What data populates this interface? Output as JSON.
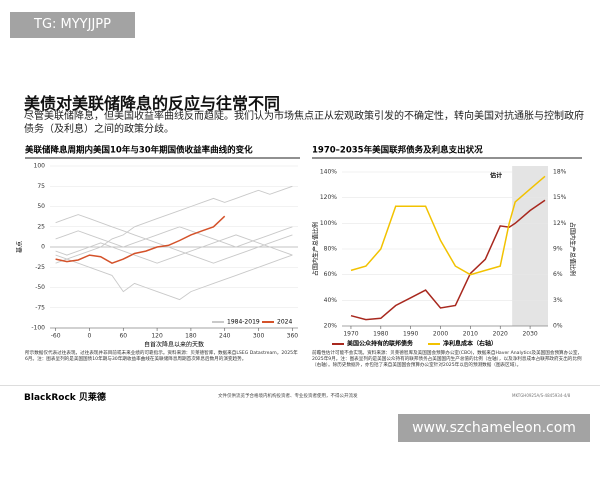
{
  "watermark_top": "TG: MYYJJPP",
  "header": {
    "title": "美债对美联储降息的反应与往常不同",
    "subtitle": "尽管美联储降息，但美国收益率曲线反而趋陡。我们认为市场焦点正从宏观政策引发的不确定性，转向美国对抗通胀与控制政府债务（及利息）之间的政策分歧。"
  },
  "chart_data": [
    {
      "type": "line",
      "title": "美联储降息周期内美国10年与30年期国债收益率曲线的变化",
      "ylabel": "基点",
      "xlabel": "自首次降息以来的天数",
      "x": [
        -60,
        -40,
        -20,
        0,
        20,
        40,
        60,
        80,
        100,
        120,
        140,
        160,
        180,
        200,
        220,
        240,
        260,
        280,
        300,
        320,
        340,
        360
      ],
      "series": [
        {
          "name": "1984-2019",
          "color": "#c9c9c9",
          "values": [
            -20,
            -15,
            -10,
            -5,
            0,
            10,
            15,
            25,
            30,
            35,
            40,
            45,
            50,
            55,
            60,
            55,
            60,
            65,
            70,
            65,
            70,
            75
          ]
        },
        {
          "color": "#c9c9c9",
          "values": [
            -10,
            -15,
            -20,
            -25,
            -30,
            -35,
            -55,
            -45,
            -50,
            -55,
            -60,
            -65,
            -55,
            -50,
            -45,
            -40,
            -35,
            -30,
            -25,
            -20,
            -15,
            -10
          ]
        },
        {
          "color": "#c9c9c9",
          "values": [
            10,
            15,
            20,
            15,
            10,
            5,
            0,
            5,
            10,
            15,
            20,
            25,
            20,
            15,
            10,
            5,
            0,
            5,
            10,
            15,
            20,
            25
          ]
        },
        {
          "color": "#c9c9c9",
          "values": [
            30,
            35,
            40,
            35,
            30,
            25,
            20,
            15,
            10,
            5,
            0,
            -5,
            -10,
            -15,
            -20,
            -15,
            -10,
            -5,
            0,
            5,
            10,
            15
          ]
        },
        {
          "color": "#c9c9c9",
          "values": [
            -5,
            -10,
            -5,
            0,
            5,
            0,
            -5,
            -10,
            -15,
            -20,
            -15,
            -10,
            -5,
            0,
            5,
            10,
            15,
            10,
            5,
            0,
            -5,
            -10
          ]
        },
        {
          "name": "2024",
          "color": "#d4522a",
          "values": [
            -15,
            -18,
            -16,
            -10,
            -12,
            -20,
            -15,
            -8,
            -5,
            0,
            2,
            8,
            15,
            20,
            25,
            38,
            null,
            null,
            null,
            null,
            null,
            null
          ]
        }
      ],
      "xlim": [
        -70,
        370
      ],
      "xticks": [
        -60,
        0,
        60,
        120,
        180,
        240,
        300,
        360
      ],
      "ylim": [
        -100,
        100
      ],
      "yticks": [
        -100,
        -75,
        -50,
        -25,
        0,
        25,
        50,
        75,
        100
      ],
      "legend": "bottom-right",
      "footnote": "所示数据仅代表过往表现，过往表现并非目前或未来业绩的可靠指示。资料来源：贝莱德智库，数据来自LSEG Datastream，2025年6月。注：图表呈列的是美国国债10年期与30年期收益率曲线在美联储降息周期首次降息后数月的演变趋势。"
    },
    {
      "type": "line",
      "title": "1970–2035年美国联邦债务及利息支出状况",
      "ylabel": "占国内生产总值比例",
      "y2label": "占国内生产总值比例",
      "annotation": "估计",
      "shade_x": [
        2024,
        2036
      ],
      "x": [
        1970,
        1975,
        1980,
        1985,
        1990,
        1995,
        2000,
        2005,
        2010,
        2015,
        2020,
        2023,
        2025,
        2030,
        2035
      ],
      "series": [
        {
          "name": "美国公众持有的联邦债务",
          "color": "#a8281e",
          "values": [
            28,
            25,
            26,
            36,
            42,
            48,
            34,
            36,
            61,
            72,
            98,
            97,
            100,
            110,
            118
          ]
        },
        {
          "name": "净利息成本（右轴）",
          "color": "#f2c200",
          "axis": "y2",
          "values": [
            6.5,
            7,
            9,
            14,
            14,
            14,
            10,
            7,
            6,
            6.5,
            7,
            12,
            14.5,
            16,
            17.5
          ]
        }
      ],
      "xlim": [
        1967,
        2036
      ],
      "xticks": [
        1970,
        1980,
        1990,
        2000,
        2010,
        2020,
        2030
      ],
      "ylim": [
        20,
        140
      ],
      "yticks": [
        {
          "value": 20,
          "label": "20%"
        },
        {
          "value": 40,
          "label": "40%"
        },
        {
          "value": 60,
          "label": "60%"
        },
        {
          "value": 80,
          "label": "80%"
        },
        {
          "value": 100,
          "label": "100%"
        },
        {
          "value": 120,
          "label": "120%"
        },
        {
          "value": 140,
          "label": "140%"
        }
      ],
      "y2lim": [
        0,
        18
      ],
      "y2ticks": [
        {
          "value": 0,
          "label": "0%"
        },
        {
          "value": 3,
          "label": "3%"
        },
        {
          "value": 6,
          "label": "6%"
        },
        {
          "value": 9,
          "label": "9%"
        },
        {
          "value": 12,
          "label": "12%"
        },
        {
          "value": 15,
          "label": "15%"
        },
        {
          "value": 18,
          "label": "18%"
        }
      ],
      "legend": "bottom",
      "footnote": "前瞻性估计可能不会实现。资料来源：贝莱德智库及美国国会预算办公室(CBO)，数据来自Haver Analytics及美国国会预算办公室，2025年9月。注：图表呈列的是美国公众持有的联邦债务占美国国内生产总值的比例（左轴），以及净利息成本占联邦政府支出的比例（右轴）。除历史数据外，亦包括了来自美国国会预算办公室针对2025年以后的预测数据（图表区域）。"
    }
  ],
  "footer": {
    "brand": "BlackRock 贝莱德",
    "notice": "文件仅供流览予合格境内机构投资者、专业投资者使用，不得公开流发",
    "code": "MKTGH0925A/S-4845934-4/8"
  },
  "watermark_bottom": "www.szchameleon.com"
}
